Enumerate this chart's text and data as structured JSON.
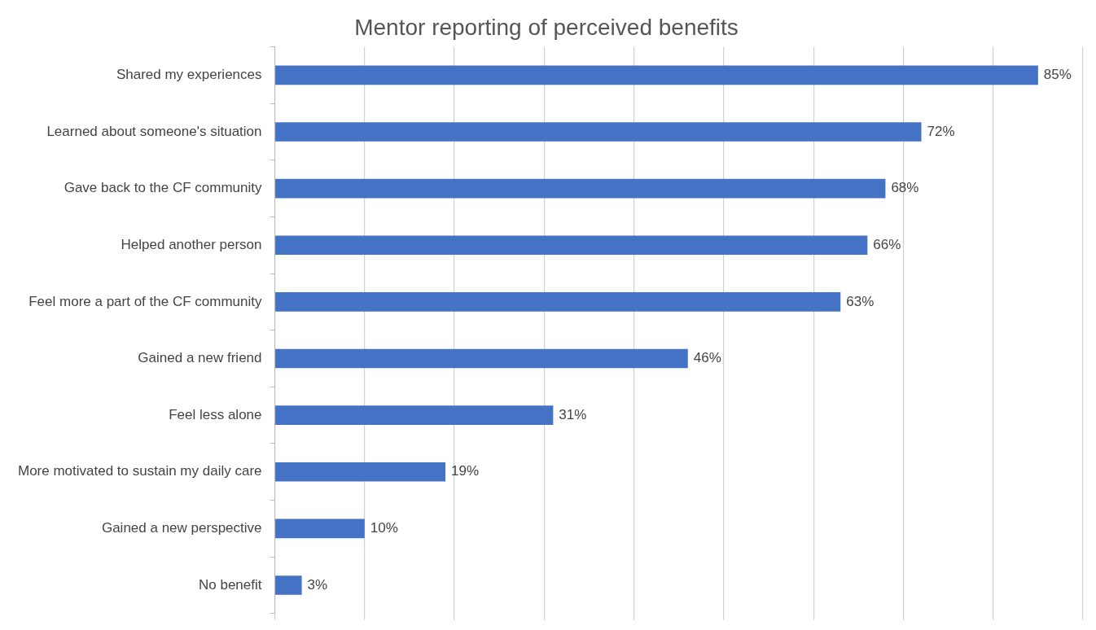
{
  "chart_data": {
    "type": "bar",
    "orientation": "horizontal",
    "title": "Mentor reporting of perceived benefits",
    "categories": [
      "Shared my experiences",
      "Learned about someone's situation",
      "Gave back to the CF community",
      "Helped another person",
      "Feel more a part of the CF community",
      "Gained a new friend",
      "Feel less alone",
      "More motivated to sustain my daily care",
      "Gained a new perspective",
      "No benefit"
    ],
    "values": [
      85,
      72,
      68,
      66,
      63,
      46,
      31,
      19,
      10,
      3
    ],
    "value_labels": [
      "85%",
      "72%",
      "68%",
      "66%",
      "63%",
      "46%",
      "31%",
      "19%",
      "10%",
      "3%"
    ],
    "color": "#4472c4",
    "xlim": [
      0,
      90
    ],
    "xticks": [
      {
        "value": 0,
        "label": null
      },
      {
        "value": 10,
        "label": null
      },
      {
        "value": 20,
        "label": null
      },
      {
        "value": 30,
        "label": null
      },
      {
        "value": 40,
        "label": null
      },
      {
        "value": 50,
        "label": null
      },
      {
        "value": 60,
        "label": null
      },
      {
        "value": 70,
        "label": null
      },
      {
        "value": 80,
        "label": null
      },
      {
        "value": 90,
        "label": null
      }
    ],
    "grid": "x",
    "tick_labels": "y",
    "legend": false
  }
}
